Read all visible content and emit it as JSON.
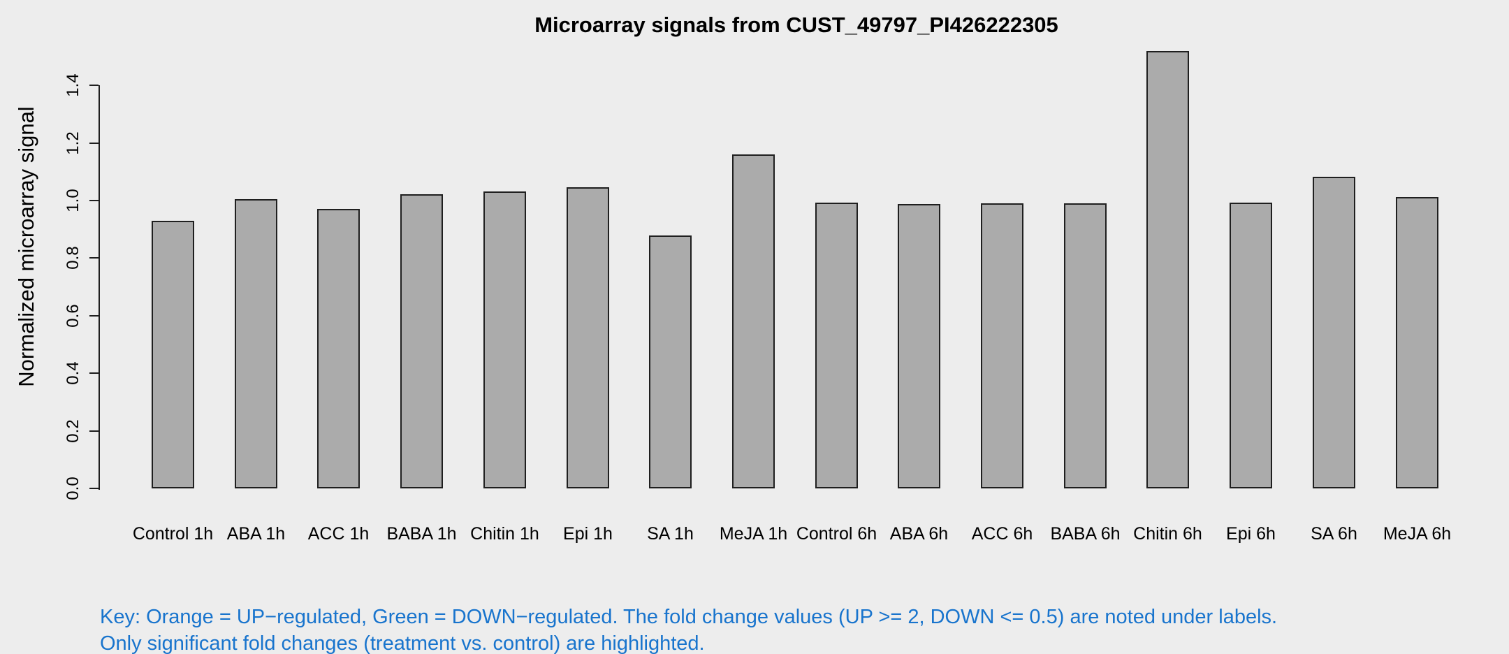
{
  "chart_data": {
    "type": "bar",
    "title": "Microarray signals from CUST_49797_PI426222305",
    "xlabel": "",
    "ylabel": "Normalized microarray signal",
    "categories": [
      "Control 1h",
      "ABA 1h",
      "ACC 1h",
      "BABA 1h",
      "Chitin 1h",
      "Epi 1h",
      "SA 1h",
      "MeJA 1h",
      "Control 6h",
      "ABA 6h",
      "ACC 6h",
      "BABA 6h",
      "Chitin 6h",
      "Epi 6h",
      "SA 6h",
      "MeJA 6h"
    ],
    "values": [
      0.93,
      1.005,
      0.972,
      1.023,
      1.031,
      1.046,
      0.878,
      1.16,
      0.993,
      0.988,
      0.99,
      0.99,
      1.52,
      0.993,
      1.083,
      1.012
    ],
    "ylim": [
      0,
      1.4
    ],
    "yticks": [
      "0.0",
      "0.2",
      "0.4",
      "0.6",
      "0.8",
      "1.0",
      "1.2",
      "1.4"
    ],
    "grid": false,
    "legend": "none",
    "bar_fill": "#ABABAB",
    "bar_border": "#1F1F1F",
    "background": "#EDEDED"
  },
  "footer": {
    "key_line1": "Key: Orange = UP−regulated, Green = DOWN−regulated. The fold change values (UP >= 2, DOWN <= 0.5) are noted under labels.",
    "key_line2": "Only significant fold changes (treatment vs. control) are highlighted.",
    "key_color": "#1874CD"
  }
}
